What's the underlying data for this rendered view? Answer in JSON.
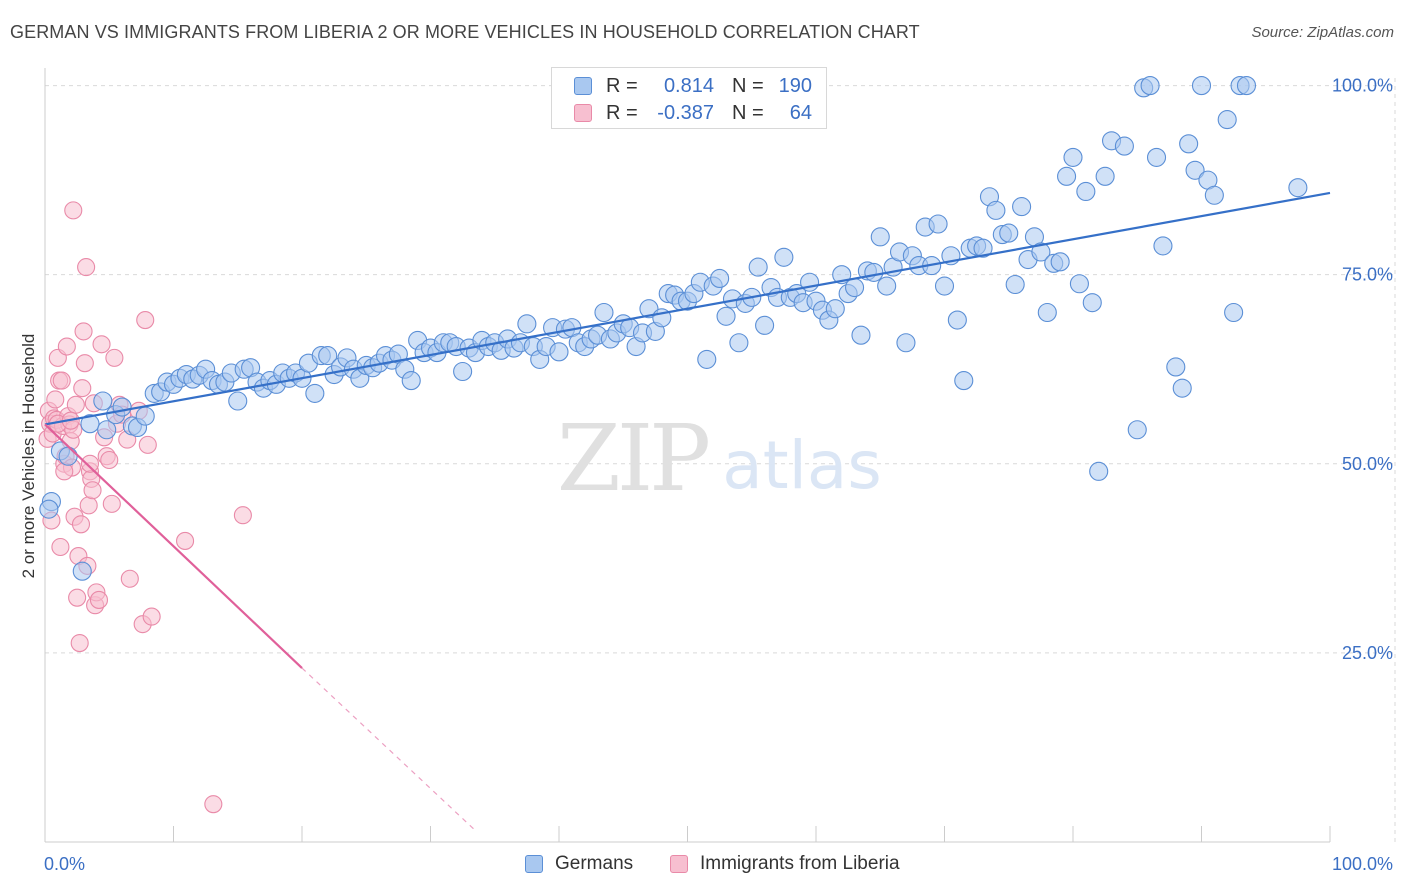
{
  "title": "GERMAN VS IMMIGRANTS FROM LIBERIA 2 OR MORE VEHICLES IN HOUSEHOLD CORRELATION CHART",
  "source": "Source: ZipAtlas.com",
  "legend": {
    "rows": [
      {
        "r_label": "R =",
        "r_value": "0.814",
        "n_label": "N =",
        "n_value": "190"
      },
      {
        "r_label": "R =",
        "r_value": "-0.387",
        "n_label": "N =",
        "n_value": "64"
      }
    ]
  },
  "colors": {
    "blue_fill": "#a9c8f0",
    "blue_stroke": "#5b8fd6",
    "blue_line": "#3570c8",
    "pink_fill": "#f7bfd0",
    "pink_stroke": "#e98aa8",
    "pink_line": "#e0609a",
    "grid": "#d9d9d9",
    "axis_label": "#3b6fc4"
  },
  "watermark": {
    "zip": "ZIP",
    "atlas": "atlas"
  },
  "chart_data": {
    "type": "scatter",
    "title": "GERMAN VS IMMIGRANTS FROM LIBERIA 2 OR MORE VEHICLES IN HOUSEHOLD CORRELATION CHART",
    "xlabel": "",
    "ylabel": "2 or more Vehicles in Household",
    "xlim": [
      0,
      100
    ],
    "ylim": [
      0,
      101
    ],
    "x_tick_labels": [
      "0.0%",
      "100.0%"
    ],
    "y_tick_labels": [
      "100.0%",
      "75.0%",
      "50.0%",
      "25.0%"
    ],
    "y_ticks": [
      100,
      75,
      50,
      25
    ],
    "grid": true,
    "legend_position": "top-center",
    "series": [
      {
        "name": "Germans",
        "r": 0.814,
        "n": 190,
        "trend": {
          "x": [
            0,
            100
          ],
          "y": [
            55.2,
            85.8
          ]
        },
        "points": [
          [
            0.5,
            45
          ],
          [
            1.2,
            51.7
          ],
          [
            1.8,
            51
          ],
          [
            2.9,
            35.8
          ],
          [
            3.5,
            55.3
          ],
          [
            4.5,
            58.3
          ],
          [
            4.8,
            54.5
          ],
          [
            5.5,
            56.5
          ],
          [
            6,
            57.5
          ],
          [
            6.8,
            55
          ],
          [
            7.2,
            54.8
          ],
          [
            7.8,
            56.3
          ],
          [
            8.5,
            59.3
          ],
          [
            9,
            59.5
          ],
          [
            9.5,
            60.8
          ],
          [
            10,
            60.5
          ],
          [
            10.5,
            61.3
          ],
          [
            11,
            61.8
          ],
          [
            11.5,
            61.2
          ],
          [
            12,
            61.7
          ],
          [
            12.5,
            62.5
          ],
          [
            13,
            61
          ],
          [
            13.5,
            60.5
          ],
          [
            14,
            60.8
          ],
          [
            14.5,
            62
          ],
          [
            15,
            58.3
          ],
          [
            15.5,
            62.5
          ],
          [
            16,
            62.7
          ],
          [
            16.5,
            60.8
          ],
          [
            17,
            60
          ],
          [
            17.5,
            61
          ],
          [
            18,
            60.5
          ],
          [
            18.5,
            62
          ],
          [
            19,
            61.3
          ],
          [
            19.5,
            62
          ],
          [
            20,
            61.3
          ],
          [
            20.5,
            63.3
          ],
          [
            21,
            59.3
          ],
          [
            21.5,
            64.3
          ],
          [
            22,
            64.3
          ],
          [
            22.5,
            61.8
          ],
          [
            23,
            62.8
          ],
          [
            23.5,
            64
          ],
          [
            24,
            62.5
          ],
          [
            24.5,
            61.3
          ],
          [
            25,
            63
          ],
          [
            25.5,
            62.7
          ],
          [
            26,
            63.3
          ],
          [
            26.5,
            64.3
          ],
          [
            27,
            63.7
          ],
          [
            27.5,
            64.5
          ],
          [
            28,
            62.5
          ],
          [
            28.5,
            61
          ],
          [
            29,
            66.3
          ],
          [
            29.5,
            64.7
          ],
          [
            30,
            65.3
          ],
          [
            30.5,
            64.7
          ],
          [
            31,
            66
          ],
          [
            31.5,
            66
          ],
          [
            32,
            65.5
          ],
          [
            32.5,
            62.2
          ],
          [
            33,
            65.3
          ],
          [
            33.5,
            64.7
          ],
          [
            34,
            66.3
          ],
          [
            34.5,
            65.5
          ],
          [
            35,
            66
          ],
          [
            35.5,
            65
          ],
          [
            36,
            66.5
          ],
          [
            36.5,
            65.3
          ],
          [
            37,
            66
          ],
          [
            37.5,
            68.5
          ],
          [
            38,
            65.5
          ],
          [
            38.5,
            63.8
          ],
          [
            39,
            65.5
          ],
          [
            39.5,
            68
          ],
          [
            40,
            64.8
          ],
          [
            40.5,
            67.8
          ],
          [
            41,
            68
          ],
          [
            41.5,
            66
          ],
          [
            42,
            65.5
          ],
          [
            42.5,
            66.5
          ],
          [
            43,
            67
          ],
          [
            43.5,
            70
          ],
          [
            44,
            66.5
          ],
          [
            44.5,
            67.3
          ],
          [
            45,
            68.5
          ],
          [
            45.5,
            68
          ],
          [
            46,
            65.5
          ],
          [
            46.5,
            67.3
          ],
          [
            47,
            70.5
          ],
          [
            47.5,
            67.5
          ],
          [
            48,
            69.3
          ],
          [
            48.5,
            72.5
          ],
          [
            49,
            72.3
          ],
          [
            49.5,
            71.5
          ],
          [
            50,
            71.5
          ],
          [
            50.5,
            72.5
          ],
          [
            51,
            74
          ],
          [
            51.5,
            63.8
          ],
          [
            52,
            73.5
          ],
          [
            52.5,
            74.5
          ],
          [
            53,
            69.5
          ],
          [
            53.5,
            71.8
          ],
          [
            54,
            66
          ],
          [
            54.5,
            71.2
          ],
          [
            55,
            72
          ],
          [
            55.5,
            76
          ],
          [
            56,
            68.3
          ],
          [
            56.5,
            73.3
          ],
          [
            57,
            72
          ],
          [
            57.5,
            77.3
          ],
          [
            58,
            72
          ],
          [
            58.5,
            72.5
          ],
          [
            59,
            71.3
          ],
          [
            59.5,
            74
          ],
          [
            60,
            71.5
          ],
          [
            60.5,
            70.3
          ],
          [
            61,
            69
          ],
          [
            61.5,
            70.5
          ],
          [
            62,
            75
          ],
          [
            62.5,
            72.5
          ],
          [
            63,
            73.3
          ],
          [
            63.5,
            67
          ],
          [
            64,
            75.5
          ],
          [
            64.5,
            75.3
          ],
          [
            65,
            80
          ],
          [
            65.5,
            73.5
          ],
          [
            66,
            76
          ],
          [
            66.5,
            78
          ],
          [
            67,
            66
          ],
          [
            67.5,
            77.5
          ],
          [
            68,
            76.2
          ],
          [
            68.5,
            81.3
          ],
          [
            69,
            76.2
          ],
          [
            69.5,
            81.7
          ],
          [
            70,
            73.5
          ],
          [
            70.5,
            77.5
          ],
          [
            71,
            69
          ],
          [
            71.5,
            61
          ],
          [
            72,
            78.5
          ],
          [
            72.5,
            78.8
          ],
          [
            73,
            78.5
          ],
          [
            73.5,
            85.3
          ],
          [
            74,
            83.5
          ],
          [
            74.5,
            80.3
          ],
          [
            75,
            80.5
          ],
          [
            75.5,
            73.7
          ],
          [
            76,
            84
          ],
          [
            76.5,
            77
          ],
          [
            77,
            80
          ],
          [
            77.5,
            78
          ],
          [
            78,
            70
          ],
          [
            78.5,
            76.5
          ],
          [
            79,
            76.7
          ],
          [
            79.5,
            88
          ],
          [
            80,
            90.5
          ],
          [
            80.5,
            73.8
          ],
          [
            81,
            86
          ],
          [
            81.5,
            71.3
          ],
          [
            82,
            49
          ],
          [
            82.5,
            88
          ],
          [
            83,
            92.7
          ],
          [
            84,
            92
          ],
          [
            85,
            54.5
          ],
          [
            85.5,
            99.7
          ],
          [
            86,
            100
          ],
          [
            86.5,
            90.5
          ],
          [
            87,
            78.8
          ],
          [
            88,
            62.8
          ],
          [
            88.5,
            60
          ],
          [
            89,
            92.3
          ],
          [
            89.5,
            88.8
          ],
          [
            90,
            100
          ],
          [
            90.5,
            87.5
          ],
          [
            91,
            85.5
          ],
          [
            92,
            95.5
          ],
          [
            92.5,
            70
          ],
          [
            93,
            100
          ],
          [
            93.5,
            100
          ],
          [
            97.5,
            86.5
          ],
          [
            0.3,
            44
          ]
        ]
      },
      {
        "name": "Immigrants from Liberia",
        "r": -0.387,
        "n": 64,
        "trend": {
          "x": [
            0,
            20
          ],
          "y": [
            55.2,
            23
          ]
        },
        "trend_dashed": {
          "x": [
            20,
            33.5
          ],
          "y": [
            23,
            1.5
          ]
        },
        "points": [
          [
            0.2,
            53.3
          ],
          [
            0.3,
            57
          ],
          [
            0.4,
            55.3
          ],
          [
            0.5,
            42.5
          ],
          [
            0.6,
            54
          ],
          [
            0.7,
            56
          ],
          [
            0.8,
            58.5
          ],
          [
            0.9,
            55.8
          ],
          [
            1,
            64
          ],
          [
            1.1,
            61
          ],
          [
            1.2,
            39
          ],
          [
            1.3,
            61
          ],
          [
            1.4,
            55
          ],
          [
            1.5,
            50
          ],
          [
            1.6,
            51
          ],
          [
            1.7,
            65.5
          ],
          [
            1.8,
            56.3
          ],
          [
            1.9,
            55.2
          ],
          [
            2,
            53
          ],
          [
            2.1,
            49.5
          ],
          [
            2.2,
            83.5
          ],
          [
            2.3,
            43
          ],
          [
            2.4,
            57.8
          ],
          [
            2.5,
            32.3
          ],
          [
            2.6,
            37.8
          ],
          [
            2.7,
            26.3
          ],
          [
            2.8,
            42
          ],
          [
            2.9,
            60
          ],
          [
            3,
            67.5
          ],
          [
            3.1,
            63.3
          ],
          [
            3.2,
            76
          ],
          [
            3.3,
            36.5
          ],
          [
            3.4,
            44.5
          ],
          [
            3.5,
            49
          ],
          [
            3.6,
            48
          ],
          [
            3.7,
            46.5
          ],
          [
            3.8,
            58
          ],
          [
            3.9,
            31.3
          ],
          [
            4,
            33
          ],
          [
            4.2,
            32
          ],
          [
            4.4,
            65.8
          ],
          [
            4.6,
            53.5
          ],
          [
            4.8,
            51
          ],
          [
            5,
            50.5
          ],
          [
            5.2,
            44.7
          ],
          [
            5.4,
            64
          ],
          [
            5.6,
            55.3
          ],
          [
            5.8,
            57.8
          ],
          [
            6,
            56.5
          ],
          [
            6.4,
            53.2
          ],
          [
            6.6,
            34.8
          ],
          [
            7.3,
            57
          ],
          [
            7.6,
            28.8
          ],
          [
            7.8,
            69
          ],
          [
            8,
            52.5
          ],
          [
            8.3,
            29.8
          ],
          [
            10.9,
            39.8
          ],
          [
            13.1,
            5
          ],
          [
            15.4,
            43.2
          ],
          [
            1.5,
            49
          ],
          [
            2.2,
            54.5
          ],
          [
            3.5,
            50
          ],
          [
            1,
            55.3
          ],
          [
            2,
            55.7
          ]
        ]
      }
    ]
  }
}
